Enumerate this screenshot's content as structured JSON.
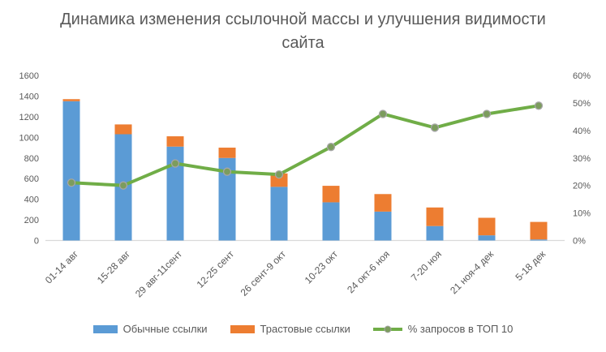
{
  "chart_data": {
    "type": "combo-stacked-bar-line",
    "title": "Динамика изменения ссылочной массы и улучшения видимости сайта",
    "categories": [
      "01-14 авг",
      "15-28 авг",
      "29 авг-11сент",
      "12-25 сент",
      "26 сент-9 окт",
      "10-23 окт",
      "24 окт-6 ноя",
      "7-20 ноя",
      "21 ноя-4 дек",
      "5-18 дек"
    ],
    "series": [
      {
        "name": "Обычные ссылки",
        "chart_type": "bar-stacked",
        "axis": "left",
        "color": "#5B9BD5",
        "values": [
          1350,
          1030,
          910,
          800,
          520,
          370,
          280,
          140,
          50,
          10
        ]
      },
      {
        "name": "Трастовые ссылки",
        "chart_type": "bar-stacked",
        "axis": "left",
        "color": "#ED7D31",
        "values": [
          20,
          95,
          100,
          100,
          130,
          160,
          170,
          180,
          170,
          170
        ]
      },
      {
        "name": "% запросов в ТОП 10",
        "chart_type": "line",
        "axis": "right",
        "color": "#70AD47",
        "marker_fill": "#7C9C5E",
        "marker_stroke": "#A6A6A6",
        "unit": "%",
        "values": [
          21,
          20,
          28,
          25,
          24,
          34,
          46,
          41,
          46,
          49
        ]
      }
    ],
    "left_axis": {
      "min": 0,
      "max": 1600,
      "step": 200,
      "tick_labels": [
        "0",
        "200",
        "400",
        "600",
        "800",
        "1000",
        "1200",
        "1400",
        "1600"
      ]
    },
    "right_axis": {
      "min": 0,
      "max": 60,
      "step": 10,
      "suffix": "%",
      "tick_labels": [
        "0%",
        "10%",
        "20%",
        "30%",
        "40%",
        "50%",
        "60%"
      ]
    },
    "legend_position": "bottom",
    "gridlines": false,
    "style": {
      "text_color": "#595959",
      "axis_line_color": "#D9D9D9",
      "background": "#FFFFFF"
    }
  }
}
